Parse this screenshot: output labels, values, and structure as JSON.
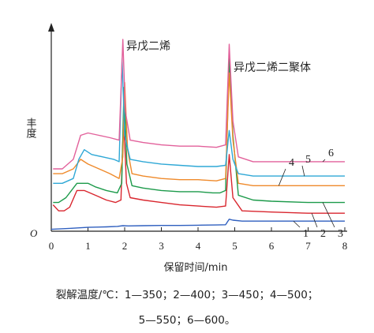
{
  "chart_data": {
    "type": "line",
    "xlabel": "保留时间/min",
    "ylabel": "丰度",
    "origin_label": "O",
    "xlim": [
      0,
      8
    ],
    "x_ticks": [
      0,
      1,
      2,
      3,
      4,
      5,
      6,
      7,
      8
    ],
    "y_ticks_shown": false,
    "grid": false,
    "annotations": [
      {
        "text": "异戊二烯",
        "x": 2.0
      },
      {
        "text": "异戊二烯二聚体",
        "x": 4.85
      }
    ],
    "series": [
      {
        "name": "1",
        "color": "#2f5fbf",
        "label": "1",
        "points": [
          [
            0,
            0.8
          ],
          [
            0.5,
            1.2
          ],
          [
            1,
            1.6
          ],
          [
            1.5,
            1.8
          ],
          [
            1.8,
            2.0
          ],
          [
            1.95,
            2.3
          ],
          [
            2.1,
            2.2
          ],
          [
            2.5,
            2.3
          ],
          [
            3,
            2.4
          ],
          [
            3.5,
            2.4
          ],
          [
            4,
            2.5
          ],
          [
            4.5,
            2.6
          ],
          [
            4.75,
            2.7
          ],
          [
            4.85,
            5.0
          ],
          [
            4.95,
            4.6
          ],
          [
            5.2,
            4.2
          ],
          [
            5.6,
            4.2
          ],
          [
            6,
            4.2
          ],
          [
            6.5,
            4.2
          ],
          [
            7,
            4.2
          ],
          [
            7.5,
            4.2
          ],
          [
            8,
            4.2
          ]
        ]
      },
      {
        "name": "2",
        "color": "#d9262e",
        "label": "2",
        "points": [
          [
            0.05,
            11
          ],
          [
            0.2,
            8.5
          ],
          [
            0.35,
            8.5
          ],
          [
            0.5,
            10
          ],
          [
            0.7,
            17
          ],
          [
            0.9,
            17
          ],
          [
            1.2,
            15
          ],
          [
            1.5,
            13
          ],
          [
            1.75,
            12
          ],
          [
            1.9,
            13
          ],
          [
            1.97,
            47
          ],
          [
            2.05,
            20
          ],
          [
            2.15,
            14
          ],
          [
            2.5,
            13
          ],
          [
            3,
            12
          ],
          [
            3.5,
            11
          ],
          [
            4,
            10.5
          ],
          [
            4.5,
            10
          ],
          [
            4.75,
            10.5
          ],
          [
            4.85,
            32
          ],
          [
            4.95,
            14
          ],
          [
            5.2,
            8.5
          ],
          [
            6,
            8
          ],
          [
            7,
            7.5
          ],
          [
            8,
            7.5
          ]
        ]
      },
      {
        "name": "3",
        "color": "#1c9a4a",
        "label": "3",
        "points": [
          [
            0.05,
            12
          ],
          [
            0.2,
            12
          ],
          [
            0.4,
            14
          ],
          [
            0.7,
            20
          ],
          [
            0.8,
            20
          ],
          [
            1.0,
            20
          ],
          [
            1.2,
            18.5
          ],
          [
            1.5,
            17
          ],
          [
            1.8,
            16
          ],
          [
            1.92,
            20
          ],
          [
            1.98,
            60
          ],
          [
            2.06,
            28
          ],
          [
            2.2,
            19
          ],
          [
            2.5,
            18
          ],
          [
            3,
            17
          ],
          [
            3.5,
            16.5
          ],
          [
            4,
            16.5
          ],
          [
            4.4,
            16
          ],
          [
            4.6,
            16
          ],
          [
            4.75,
            17
          ],
          [
            4.85,
            72
          ],
          [
            4.95,
            40
          ],
          [
            5.1,
            15
          ],
          [
            5.5,
            13
          ],
          [
            6,
            12.5
          ],
          [
            7,
            12
          ],
          [
            8,
            12
          ]
        ]
      },
      {
        "name": "4",
        "color": "#ef8a2b",
        "label": "4",
        "points": [
          [
            0.05,
            24
          ],
          [
            0.3,
            24
          ],
          [
            0.6,
            26
          ],
          [
            0.8,
            30
          ],
          [
            1.0,
            28
          ],
          [
            1.3,
            26
          ],
          [
            1.6,
            24
          ],
          [
            1.85,
            22
          ],
          [
            1.95,
            31
          ],
          [
            2.0,
            62
          ],
          [
            2.08,
            34
          ],
          [
            2.2,
            24
          ],
          [
            2.5,
            23
          ],
          [
            3,
            22
          ],
          [
            3.5,
            21.5
          ],
          [
            4,
            21.5
          ],
          [
            4.5,
            21
          ],
          [
            4.75,
            22
          ],
          [
            4.85,
            66
          ],
          [
            4.95,
            38
          ],
          [
            5.1,
            20
          ],
          [
            5.5,
            19
          ],
          [
            6,
            19
          ],
          [
            7,
            19
          ],
          [
            8,
            19
          ]
        ]
      },
      {
        "name": "5",
        "color": "#2fa8d6",
        "label": "5",
        "points": [
          [
            0.05,
            20
          ],
          [
            0.3,
            20
          ],
          [
            0.6,
            22
          ],
          [
            0.75,
            30
          ],
          [
            0.9,
            34
          ],
          [
            1.1,
            32
          ],
          [
            1.4,
            31
          ],
          [
            1.7,
            30
          ],
          [
            1.85,
            29
          ],
          [
            1.93,
            72
          ],
          [
            2.0,
            40
          ],
          [
            2.15,
            30
          ],
          [
            2.5,
            29
          ],
          [
            3,
            28
          ],
          [
            3.5,
            27.5
          ],
          [
            4,
            27
          ],
          [
            4.5,
            27
          ],
          [
            4.75,
            27.5
          ],
          [
            4.85,
            42
          ],
          [
            4.95,
            30
          ],
          [
            5.1,
            24
          ],
          [
            5.5,
            23
          ],
          [
            6,
            23
          ],
          [
            7,
            23
          ],
          [
            8,
            23
          ]
        ]
      },
      {
        "name": "6",
        "color": "#e2619b",
        "label": "6",
        "points": [
          [
            0.05,
            26
          ],
          [
            0.3,
            26
          ],
          [
            0.6,
            30
          ],
          [
            0.8,
            40
          ],
          [
            1.0,
            41
          ],
          [
            1.3,
            40
          ],
          [
            1.6,
            39
          ],
          [
            1.85,
            38
          ],
          [
            1.95,
            80
          ],
          [
            2.02,
            50
          ],
          [
            2.15,
            38
          ],
          [
            2.5,
            37
          ],
          [
            3,
            36
          ],
          [
            3.5,
            35.5
          ],
          [
            4,
            35.5
          ],
          [
            4.5,
            35
          ],
          [
            4.75,
            36
          ],
          [
            4.85,
            78
          ],
          [
            4.95,
            46
          ],
          [
            5.1,
            31
          ],
          [
            5.5,
            29
          ],
          [
            6,
            29
          ],
          [
            7,
            29
          ],
          [
            8,
            29
          ]
        ]
      }
    ]
  },
  "caption": {
    "line1": "裂解温度/℃：1—350；2—400；3—450；4—500；",
    "line2": "5—550；6—600。"
  }
}
